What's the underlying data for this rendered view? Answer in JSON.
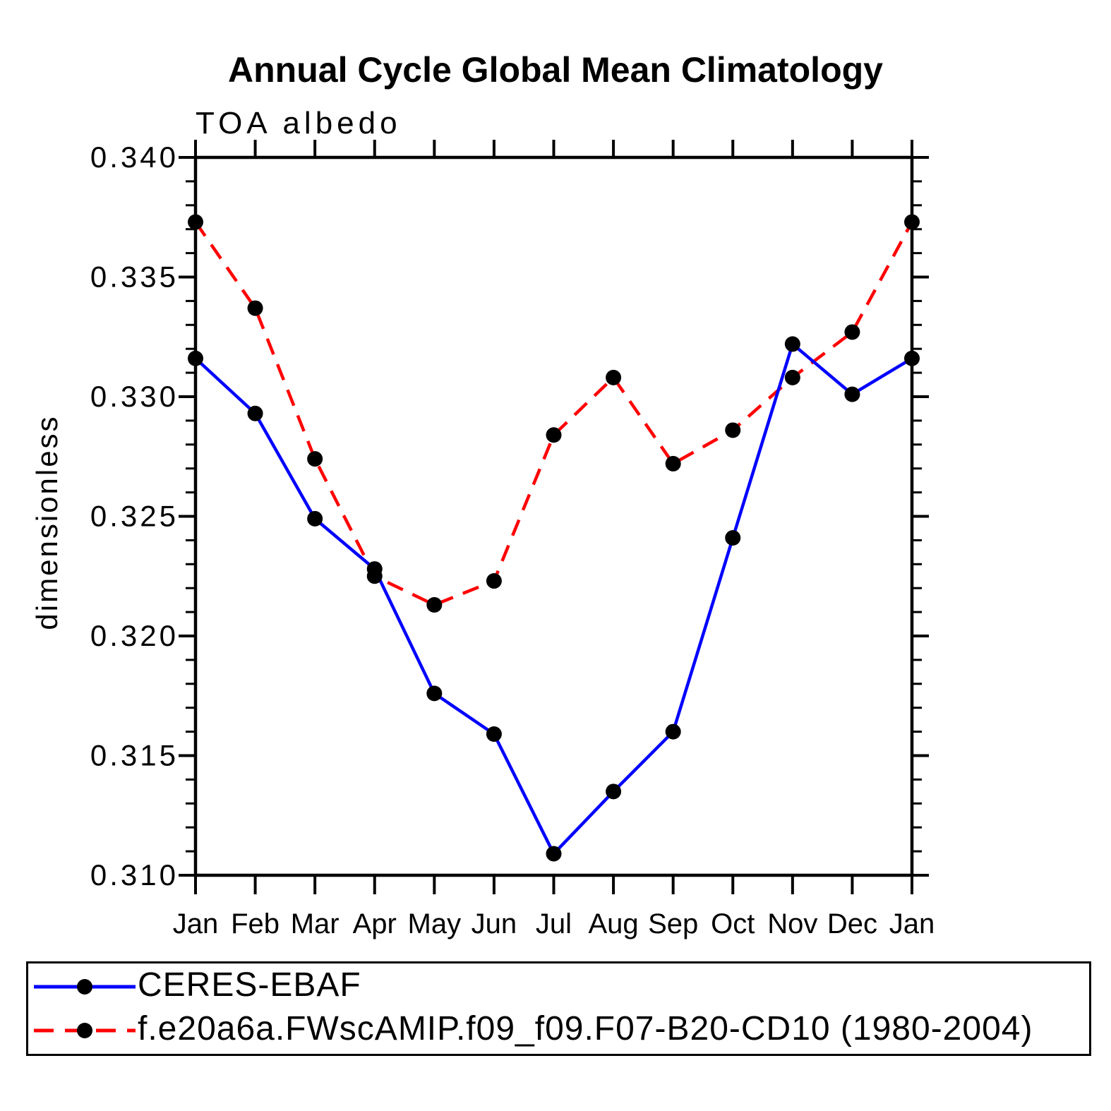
{
  "page": {
    "background": "#ffffff"
  },
  "header": {
    "title": "Annual Cycle Global Mean Climatology",
    "subtitle": "TOA albedo"
  },
  "axes": {
    "y_label": "dimensionless",
    "y_tick_labels": [
      "0.340",
      "0.335",
      "0.330",
      "0.325",
      "0.320",
      "0.315",
      "0.310"
    ],
    "x_tick_labels": [
      "Jan",
      "Feb",
      "Mar",
      "Apr",
      "May",
      "Jun",
      "Jul",
      "Aug",
      "Sep",
      "Oct",
      "Nov",
      "Dec",
      "Jan"
    ]
  },
  "legend": {
    "marker_color": "#000000",
    "items": [
      {
        "label": "CERES-EBAF",
        "color": "#0000ff",
        "style": "solid"
      },
      {
        "label": "f.e20a6a.FWscAMIP.f09_f09.F07-B20-CD10 (1980-2004)",
        "color": "#ff0000",
        "style": "dashed"
      }
    ]
  },
  "chart_data": {
    "type": "line",
    "title": "Annual Cycle Global Mean Climatology",
    "subtitle": "TOA albedo",
    "xlabel": "",
    "ylabel": "dimensionless",
    "categories": [
      "Jan",
      "Feb",
      "Mar",
      "Apr",
      "May",
      "Jun",
      "Jul",
      "Aug",
      "Sep",
      "Oct",
      "Nov",
      "Dec",
      "Jan"
    ],
    "ylim": [
      0.31,
      0.34
    ],
    "y_major_step": 0.005,
    "y_minor_step": 0.001,
    "grid": false,
    "legend_position": "bottom",
    "marker": "filled-circle",
    "marker_color": "#000000",
    "series": [
      {
        "name": "CERES-EBAF",
        "color": "#0000ff",
        "line_style": "solid",
        "values": [
          0.3316,
          0.3293,
          0.3249,
          0.3228,
          0.3176,
          0.3159,
          0.3109,
          0.3135,
          0.316,
          0.3241,
          0.3322,
          0.3301,
          0.3316
        ]
      },
      {
        "name": "f.e20a6a.FWscAMIP.f09_f09.F07-B20-CD10 (1980-2004)",
        "color": "#ff0000",
        "line_style": "dashed",
        "values": [
          0.3373,
          0.3337,
          0.3274,
          0.3225,
          0.3213,
          0.3223,
          0.3284,
          0.3308,
          0.3272,
          0.3286,
          0.3308,
          0.3327,
          0.3373
        ]
      }
    ]
  }
}
